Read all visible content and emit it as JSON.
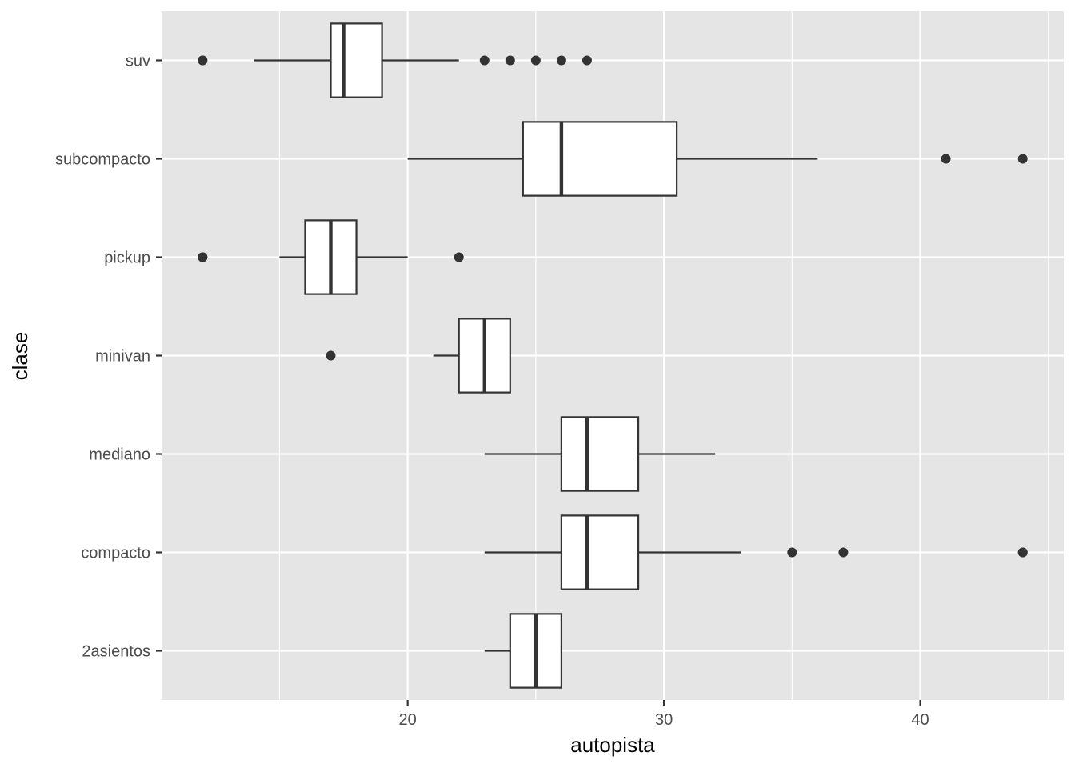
{
  "chart_data": {
    "type": "boxplot",
    "orientation": "horizontal",
    "title": "",
    "xlabel": "autopista",
    "ylabel": "clase",
    "xlim": [
      10.4,
      45.6
    ],
    "x_ticks": [
      20,
      30,
      40
    ],
    "x_tick_labels": [
      "20",
      "30",
      "40"
    ],
    "categories": [
      "2asientos",
      "compacto",
      "mediano",
      "minivan",
      "pickup",
      "subcompacto",
      "suv"
    ],
    "boxes": [
      {
        "category": "2asientos",
        "whisker_low": 23,
        "q1": 24,
        "median": 25,
        "q3": 26,
        "whisker_high": 26,
        "outliers": []
      },
      {
        "category": "compacto",
        "whisker_low": 23,
        "q1": 26,
        "median": 27,
        "q3": 29,
        "whisker_high": 33,
        "outliers": [
          35,
          37,
          44,
          44
        ]
      },
      {
        "category": "mediano",
        "whisker_low": 23,
        "q1": 26,
        "median": 27,
        "q3": 29,
        "whisker_high": 32,
        "outliers": []
      },
      {
        "category": "minivan",
        "whisker_low": 21,
        "q1": 22,
        "median": 23,
        "q3": 24,
        "whisker_high": 24,
        "outliers": [
          17
        ]
      },
      {
        "category": "pickup",
        "whisker_low": 15,
        "q1": 16,
        "median": 17,
        "q3": 18,
        "whisker_high": 20,
        "outliers": [
          12,
          12,
          12,
          22
        ]
      },
      {
        "category": "subcompacto",
        "whisker_low": 20,
        "q1": 24.5,
        "median": 26,
        "q3": 30.5,
        "whisker_high": 36,
        "outliers": [
          41,
          44
        ]
      },
      {
        "category": "suv",
        "whisker_low": 14,
        "q1": 17,
        "median": 17.5,
        "q3": 19,
        "whisker_high": 22,
        "outliers": [
          12,
          12,
          23,
          24,
          25,
          26,
          27
        ]
      }
    ],
    "grid": true,
    "colors": {
      "panel_background": "#e5e5e5",
      "grid_line": "#ffffff",
      "box_fill": "#ffffff",
      "box_stroke": "#333333",
      "outlier": "#333333",
      "tick_label": "#4d4d4d",
      "axis_title": "#000000",
      "tick_mark": "#333333"
    }
  }
}
